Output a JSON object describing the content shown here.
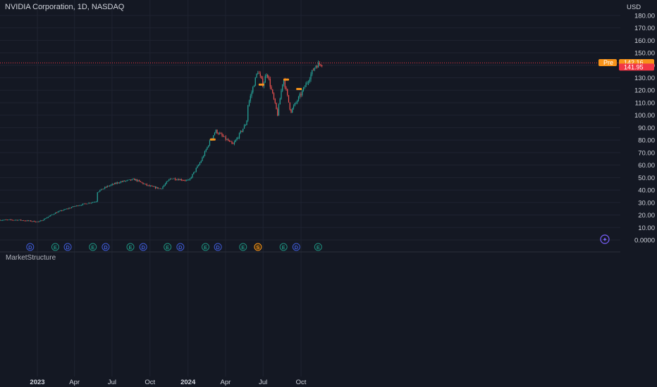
{
  "header": {
    "symbol_title": "NVIDIA Corporation, 1D, NASDAQ",
    "currency": "USD"
  },
  "indicator": {
    "label": "MarketStructure"
  },
  "price_tags": {
    "pre_label": "Pre",
    "pre_value": "142.16",
    "last_value": "141.95"
  },
  "colors": {
    "background": "#141823",
    "grid": "#1f2331",
    "up": "#26a69a",
    "down": "#ef5350",
    "pre": "#f7931a",
    "last": "#f23645",
    "earnings": "#1e8f7e",
    "dividend": "#3f5bd6",
    "split": "#f7931a"
  },
  "chart_data": {
    "type": "candlestick",
    "title": "NVIDIA Corporation, 1D, NASDAQ",
    "ylabel": "USD",
    "ylim": [
      0,
      185
    ],
    "yticks": [
      "0.0000",
      "10.00",
      "20.00",
      "30.00",
      "40.00",
      "50.00",
      "60.00",
      "70.00",
      "80.00",
      "90.00",
      "100.00",
      "110.00",
      "120.00",
      "130.00",
      "140.00",
      "150.00",
      "160.00",
      "170.00",
      "180.00"
    ],
    "xticks": [
      "2023",
      "Apr",
      "Jul",
      "Oct",
      "2024",
      "Apr",
      "Jul",
      "Oct"
    ],
    "approx_close_path": [
      [
        "2022-11-15",
        16
      ],
      [
        "2022-12-20",
        15
      ],
      [
        "2023-01-05",
        14.5
      ],
      [
        "2023-02-15",
        22
      ],
      [
        "2023-04-01",
        27
      ],
      [
        "2023-05-24",
        31
      ],
      [
        "2023-05-26",
        38.5
      ],
      [
        "2023-06-20",
        43
      ],
      [
        "2023-07-20",
        46.5
      ],
      [
        "2023-08-25",
        48.5
      ],
      [
        "2023-09-25",
        43.5
      ],
      [
        "2023-10-27",
        41
      ],
      [
        "2023-11-20",
        49.5
      ],
      [
        "2024-01-03",
        47.5
      ],
      [
        "2024-02-01",
        63
      ],
      [
        "2024-02-23",
        79
      ],
      [
        "2024-03-08",
        87.5
      ],
      [
        "2024-04-19",
        76.2
      ],
      [
        "2024-05-22",
        94
      ],
      [
        "2024-05-24",
        106.5
      ],
      [
        "2024-06-18",
        135.6
      ],
      [
        "2024-07-01",
        124.3
      ],
      [
        "2024-07-10",
        134.9
      ],
      [
        "2024-08-05",
        100.5
      ],
      [
        "2024-08-19",
        130
      ],
      [
        "2024-09-06",
        102.8
      ],
      [
        "2024-10-01",
        117
      ],
      [
        "2024-11-05",
        139.9
      ],
      [
        "2024-11-22",
        141.95
      ]
    ],
    "pre_market_price": 142.16,
    "last_price": 141.95,
    "markers": [
      {
        "type": "earnings",
        "symbol": "E",
        "x": [
          "2023-02-22",
          "2023-05-24",
          "2023-08-23",
          "2023-11-21",
          "2024-02-21",
          "2024-05-22",
          "2024-08-28",
          "2024-11-20"
        ]
      },
      {
        "type": "dividend",
        "symbol": "D",
        "x": [
          "2022-12-06",
          "2023-03-07",
          "2023-06-07",
          "2023-09-06",
          "2023-12-05",
          "2024-03-05",
          "2024-09-11"
        ]
      },
      {
        "type": "split",
        "symbol": "S",
        "x": [
          "2024-06-10"
        ]
      }
    ]
  }
}
